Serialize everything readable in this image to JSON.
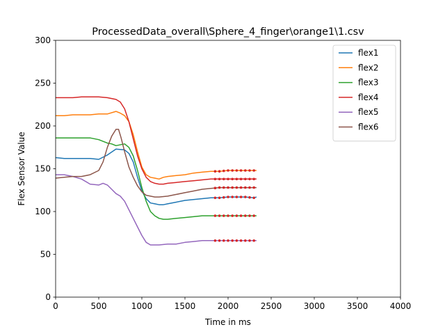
{
  "chart_data": {
    "type": "line",
    "title": "ProcessedData_overall\\Sphere_4_finger\\orange1\\1.csv",
    "xlabel": "Time in ms",
    "ylabel": "Flex Sensor Value",
    "xlim": [
      0,
      4000
    ],
    "ylim": [
      0,
      300
    ],
    "xticks": [
      "0",
      "500",
      "1000",
      "1500",
      "2000",
      "2500",
      "3000",
      "3500",
      "4000"
    ],
    "yticks": [
      "0",
      "50",
      "100",
      "150",
      "200",
      "250",
      "300"
    ],
    "grid": false,
    "legend_position": "upper-right",
    "marker_color": "#d62728",
    "marker_x": [
      1850,
      1900,
      1950,
      2000,
      2050,
      2100,
      2150,
      2200,
      2250,
      2300
    ],
    "series": [
      {
        "name": "flex1",
        "color": "#1f77b4",
        "x": [
          0,
          100,
          200,
          300,
          400,
          500,
          600,
          700,
          800,
          850,
          900,
          950,
          1000,
          1050,
          1100,
          1150,
          1200,
          1250,
          1300,
          1400,
          1500,
          1600,
          1700,
          1800,
          1900,
          2000,
          2100,
          2200,
          2300,
          2330
        ],
        "y": [
          163,
          162,
          162,
          162,
          162,
          161,
          166,
          173,
          172,
          168,
          158,
          140,
          124,
          115,
          110,
          109,
          108,
          108,
          109,
          111,
          113,
          114,
          115,
          116,
          116,
          117,
          117,
          117,
          116,
          117
        ]
      },
      {
        "name": "flex2",
        "color": "#ff7f0e",
        "x": [
          0,
          100,
          200,
          300,
          400,
          500,
          600,
          700,
          750,
          800,
          850,
          900,
          950,
          1000,
          1050,
          1100,
          1150,
          1200,
          1250,
          1300,
          1400,
          1500,
          1600,
          1700,
          1800,
          1900,
          2000,
          2100,
          2200,
          2300,
          2330
        ],
        "y": [
          212,
          212,
          213,
          213,
          213,
          214,
          214,
          217,
          215,
          212,
          205,
          190,
          170,
          152,
          143,
          140,
          139,
          138,
          140,
          141,
          142,
          143,
          145,
          146,
          147,
          147,
          148,
          148,
          148,
          148,
          148
        ]
      },
      {
        "name": "flex3",
        "color": "#2ca02c",
        "x": [
          0,
          100,
          200,
          300,
          400,
          500,
          600,
          650,
          700,
          800,
          850,
          900,
          950,
          1000,
          1050,
          1100,
          1150,
          1200,
          1250,
          1300,
          1400,
          1500,
          1600,
          1700,
          1800,
          1900,
          2000,
          2100,
          2200,
          2300,
          2330
        ],
        "y": [
          186,
          186,
          186,
          186,
          186,
          184,
          180,
          179,
          177,
          179,
          175,
          165,
          148,
          128,
          112,
          100,
          95,
          92,
          91,
          91,
          92,
          93,
          94,
          95,
          95,
          95,
          95,
          95,
          95,
          95,
          95
        ]
      },
      {
        "name": "flex4",
        "color": "#d62728",
        "x": [
          0,
          100,
          200,
          300,
          400,
          500,
          600,
          700,
          750,
          800,
          850,
          900,
          950,
          1000,
          1050,
          1100,
          1150,
          1200,
          1250,
          1300,
          1400,
          1500,
          1600,
          1700,
          1800,
          1900,
          2000,
          2100,
          2200,
          2300,
          2330
        ],
        "y": [
          233,
          233,
          233,
          234,
          234,
          234,
          233,
          231,
          228,
          220,
          205,
          185,
          165,
          150,
          140,
          135,
          133,
          132,
          132,
          133,
          134,
          135,
          136,
          137,
          138,
          138,
          138,
          138,
          138,
          138,
          138
        ]
      },
      {
        "name": "flex5",
        "color": "#9467bd",
        "x": [
          0,
          100,
          200,
          300,
          400,
          500,
          550,
          600,
          650,
          700,
          750,
          800,
          850,
          900,
          950,
          1000,
          1050,
          1100,
          1150,
          1200,
          1300,
          1400,
          1500,
          1600,
          1700,
          1800,
          1900,
          2000,
          2100,
          2200,
          2300,
          2330
        ],
        "y": [
          143,
          143,
          141,
          138,
          132,
          131,
          133,
          131,
          126,
          121,
          118,
          112,
          102,
          92,
          82,
          72,
          64,
          61,
          61,
          61,
          62,
          62,
          64,
          65,
          66,
          66,
          66,
          66,
          66,
          66,
          66,
          66
        ]
      },
      {
        "name": "flex6",
        "color": "#8c564b",
        "x": [
          0,
          100,
          200,
          300,
          400,
          500,
          550,
          600,
          650,
          700,
          730,
          760,
          800,
          850,
          900,
          950,
          1000,
          1050,
          1100,
          1150,
          1200,
          1300,
          1400,
          1500,
          1600,
          1700,
          1800,
          1900,
          2000,
          2100,
          2200,
          2300,
          2330
        ],
        "y": [
          139,
          140,
          141,
          141,
          143,
          148,
          158,
          175,
          188,
          196,
          196,
          186,
          170,
          152,
          140,
          130,
          123,
          119,
          118,
          117,
          117,
          118,
          120,
          122,
          124,
          126,
          127,
          128,
          128,
          128,
          128,
          128,
          128
        ]
      }
    ]
  }
}
